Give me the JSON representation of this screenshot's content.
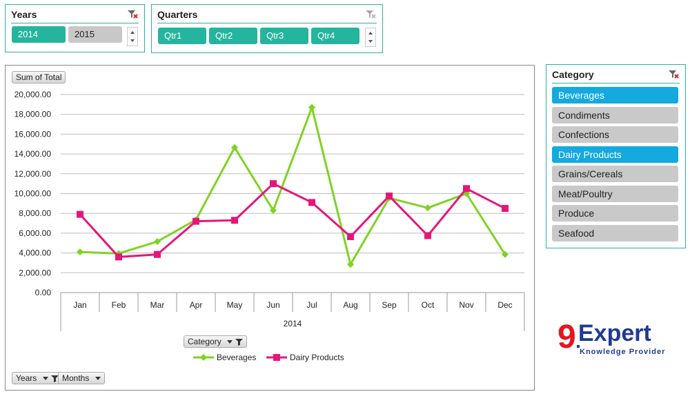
{
  "slicers": {
    "years": {
      "title": "Years",
      "items": [
        {
          "label": "2014",
          "selected": true
        },
        {
          "label": "2015",
          "selected": false
        }
      ]
    },
    "quarters": {
      "title": "Quarters",
      "items": [
        {
          "label": "Qtr1",
          "selected": true
        },
        {
          "label": "Qtr2",
          "selected": true
        },
        {
          "label": "Qtr3",
          "selected": true
        },
        {
          "label": "Qtr4",
          "selected": true
        }
      ]
    },
    "category": {
      "title": "Category",
      "items": [
        {
          "label": "Beverages",
          "selected": true
        },
        {
          "label": "Condiments",
          "selected": false
        },
        {
          "label": "Confections",
          "selected": false
        },
        {
          "label": "Dairy Products",
          "selected": true
        },
        {
          "label": "Grains/Cereals",
          "selected": false
        },
        {
          "label": "Meat/Poultry",
          "selected": false
        },
        {
          "label": "Produce",
          "selected": false
        },
        {
          "label": "Seafood",
          "selected": false
        }
      ]
    }
  },
  "pivot_buttons": {
    "value_field": "Sum of Total",
    "legend_field": "Category",
    "axis_field_1": "Years",
    "axis_field_2": "Months"
  },
  "chart_data": {
    "type": "line",
    "title": "",
    "categories": [
      "Jan",
      "Feb",
      "Mar",
      "Apr",
      "May",
      "Jun",
      "Jul",
      "Aug",
      "Sep",
      "Oct",
      "Nov",
      "Dec"
    ],
    "x_group_label": "2014",
    "ylim": [
      0,
      20000
    ],
    "y_ticks": [
      "0.00",
      "2,000.00",
      "4,000.00",
      "6,000.00",
      "8,000.00",
      "10,000.00",
      "12,000.00",
      "14,000.00",
      "16,000.00",
      "18,000.00",
      "20,000.00"
    ],
    "grid": true,
    "legend_position": "bottom",
    "series": [
      {
        "name": "Beverages",
        "color": "#7ed321",
        "marker": "diamond",
        "values": [
          4100,
          3950,
          5150,
          7350,
          14650,
          8300,
          18700,
          2850,
          9550,
          8550,
          10000,
          3850
        ]
      },
      {
        "name": "Dairy Products",
        "color": "#e6157a",
        "marker": "square",
        "values": [
          7900,
          3600,
          3850,
          7200,
          7300,
          11000,
          9100,
          5650,
          9750,
          5750,
          10500,
          8500
        ]
      }
    ]
  },
  "logo": {
    "brand_prefix": "9",
    "brand_rest": "Expert",
    "tagline": "Knowledge Provider"
  },
  "colors": {
    "accent": "#2ab2a3",
    "selected_teal": "#25b59e",
    "selected_blue": "#14a9df",
    "unselected": "#c8c8c8"
  }
}
